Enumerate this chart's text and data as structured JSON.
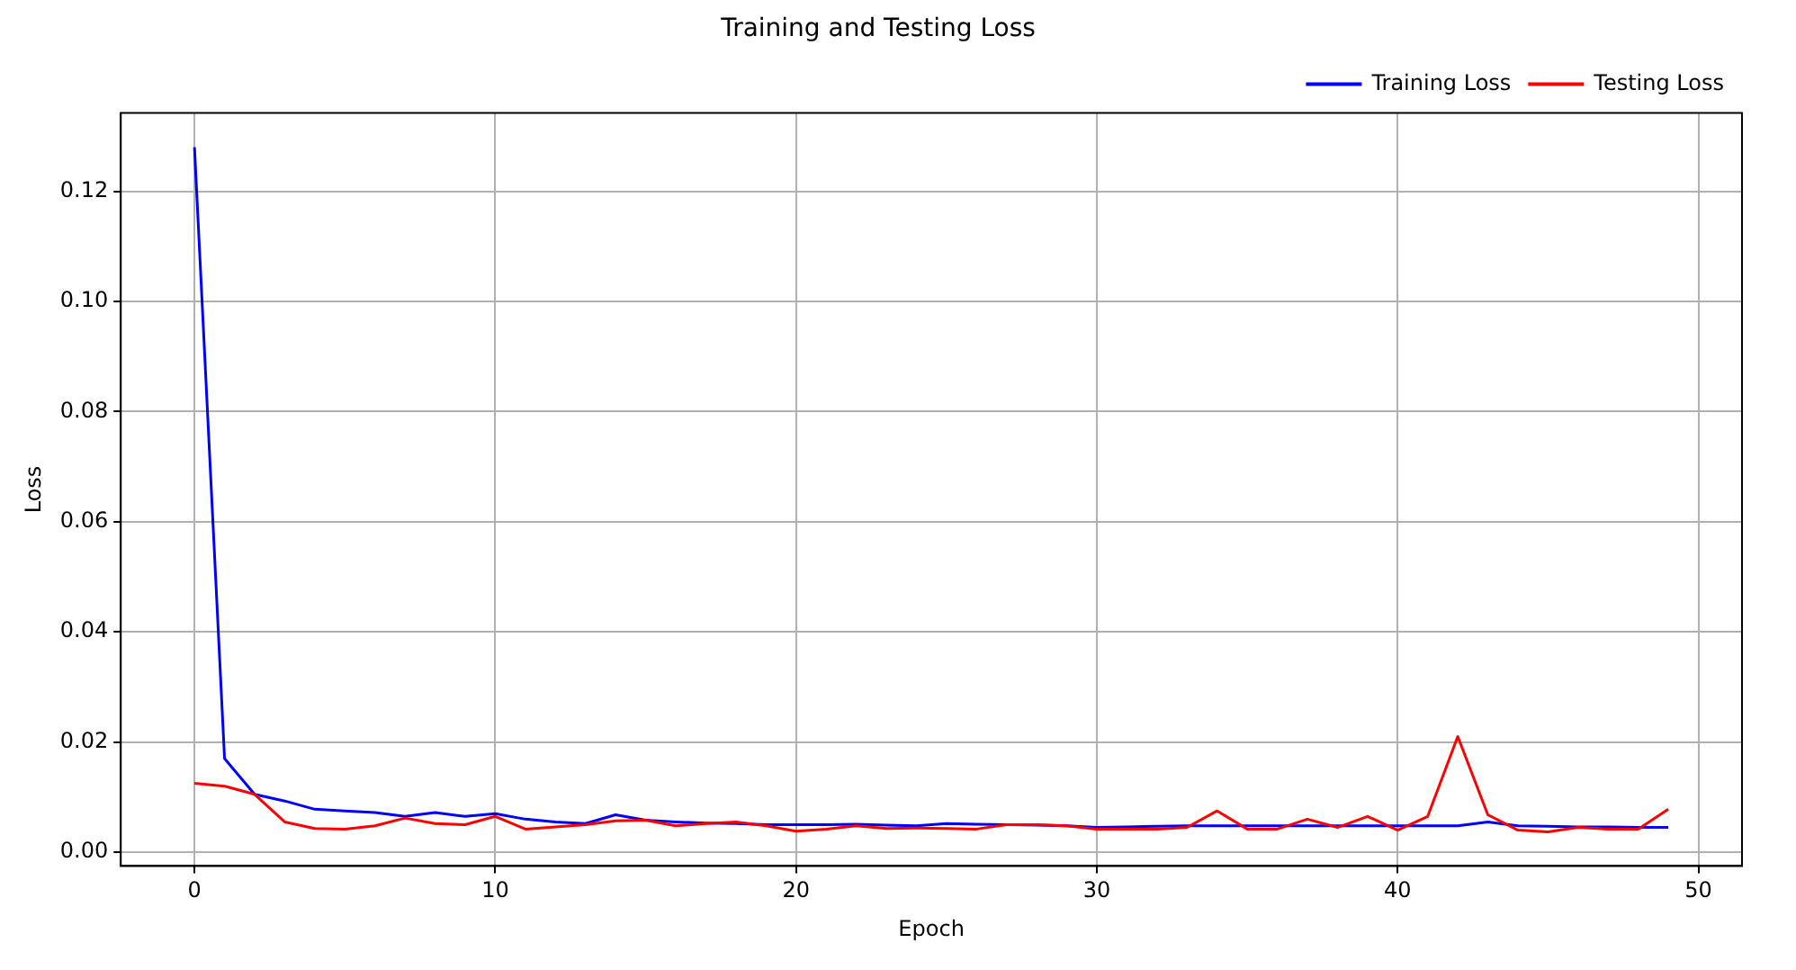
{
  "chart_data": {
    "type": "line",
    "title": "Training and Testing Loss",
    "xlabel": "Epoch",
    "ylabel": "Loss",
    "x": [
      0,
      1,
      2,
      3,
      4,
      5,
      6,
      7,
      8,
      9,
      10,
      11,
      12,
      13,
      14,
      15,
      16,
      17,
      18,
      19,
      20,
      21,
      22,
      23,
      24,
      25,
      26,
      27,
      28,
      29,
      30,
      31,
      32,
      33,
      34,
      35,
      36,
      37,
      38,
      39,
      40,
      41,
      42,
      43,
      44,
      45,
      46,
      47,
      48,
      49
    ],
    "series": [
      {
        "name": "Training Loss",
        "color": "#0000ff",
        "values": [
          0.128,
          0.017,
          0.0105,
          0.0093,
          0.0078,
          0.0075,
          0.0072,
          0.0065,
          0.0072,
          0.0065,
          0.007,
          0.006,
          0.0055,
          0.0052,
          0.0068,
          0.0058,
          0.0055,
          0.0053,
          0.0052,
          0.005,
          0.005,
          0.005,
          0.0051,
          0.0049,
          0.0048,
          0.0052,
          0.0051,
          0.005,
          0.0049,
          0.0048,
          0.0045,
          0.0046,
          0.0047,
          0.0048,
          0.0048,
          0.0048,
          0.0048,
          0.0048,
          0.0048,
          0.0048,
          0.0048,
          0.0048,
          0.0048,
          0.0055,
          0.0048,
          0.0047,
          0.0046,
          0.0046,
          0.0045,
          0.0045
        ]
      },
      {
        "name": "Testing Loss",
        "color": "#ff0000",
        "values": [
          0.0125,
          0.012,
          0.0105,
          0.0055,
          0.0043,
          0.0042,
          0.0048,
          0.0062,
          0.0052,
          0.005,
          0.0065,
          0.0042,
          0.0046,
          0.005,
          0.0057,
          0.0058,
          0.0048,
          0.0052,
          0.0055,
          0.0048,
          0.0038,
          0.0042,
          0.0048,
          0.0043,
          0.0044,
          0.0043,
          0.0042,
          0.005,
          0.005,
          0.0048,
          0.0042,
          0.0042,
          0.0042,
          0.0045,
          0.0075,
          0.0042,
          0.0042,
          0.006,
          0.0045,
          0.0065,
          0.004,
          0.0065,
          0.021,
          0.0068,
          0.004,
          0.0037,
          0.0045,
          0.0042,
          0.0042,
          0.0078
        ]
      }
    ],
    "xlim": [
      -2.45,
      51.45
    ],
    "xticks": [
      0,
      10,
      20,
      30,
      40,
      50
    ],
    "ylim": [
      -0.0025,
      0.1342
    ],
    "yticks": [
      {
        "value": 0,
        "label": "0.00"
      },
      {
        "value": 0.02,
        "label": "0.02"
      },
      {
        "value": 0.04,
        "label": "0.04"
      },
      {
        "value": 0.06,
        "label": "0.06"
      },
      {
        "value": 0.08,
        "label": "0.08"
      },
      {
        "value": 0.1,
        "label": "0.10"
      },
      {
        "value": 0.12,
        "label": "0.12"
      }
    ],
    "grid": true,
    "legend": "top right",
    "marker": "none",
    "line_style": "solid"
  }
}
